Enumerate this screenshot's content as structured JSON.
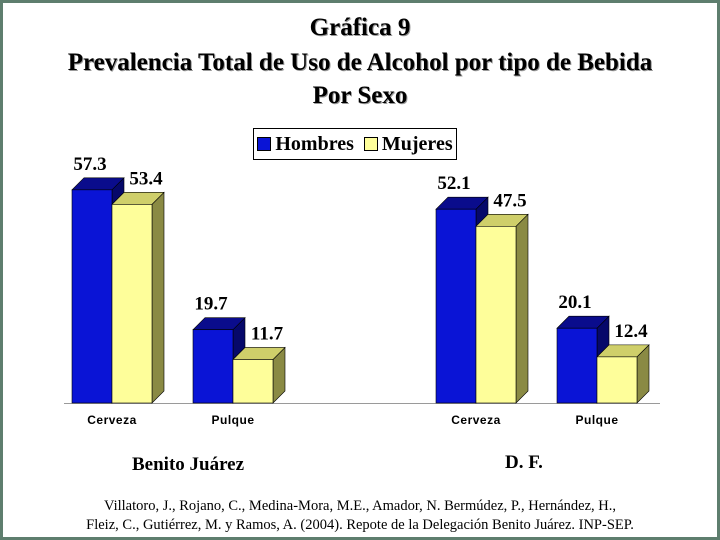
{
  "title": {
    "line1": "Gráfica 9",
    "line2": "Prevalencia Total de Uso de Alcohol por tipo de Bebida",
    "line3": "Por Sexo"
  },
  "legend": {
    "items": [
      {
        "label": "Hombres",
        "color": "#0a14d6"
      },
      {
        "label": "Mujeres",
        "color": "#fefe9a"
      }
    ]
  },
  "chart_data": {
    "type": "bar",
    "groups": [
      {
        "name": "Benito Juárez",
        "categories": [
          "Cerveza",
          "Pulque"
        ],
        "series": [
          {
            "name": "Hombres",
            "values": [
              57.3,
              19.7
            ]
          },
          {
            "name": "Mujeres",
            "values": [
              53.4,
              11.7
            ]
          }
        ]
      },
      {
        "name": "D. F.",
        "categories": [
          "Cerveza",
          "Pulque"
        ],
        "series": [
          {
            "name": "Hombres",
            "values": [
              52.1,
              20.1
            ]
          },
          {
            "name": "Mujeres",
            "values": [
              47.5,
              12.4
            ]
          }
        ]
      }
    ],
    "ylim": [
      0,
      60
    ],
    "grid": false,
    "legend_position": "top-center",
    "colors": {
      "Hombres": {
        "front": "#0a14d6",
        "top": "#0a0c8c",
        "side": "#06086a"
      },
      "Mujeres": {
        "front": "#fefe9a",
        "top": "#cfcf6a",
        "side": "#8a8a44"
      }
    }
  },
  "citation": {
    "line1": "Villatoro, J., Rojano, C., Medina-Mora, M.E., Amador, N. Bermúdez, P., Hernández, H.,",
    "line2": "Fleiz, C., Gutiérrez, M. y Ramos, A. (2004). Repote de la Delegación Benito Juárez. INP-SEP."
  }
}
